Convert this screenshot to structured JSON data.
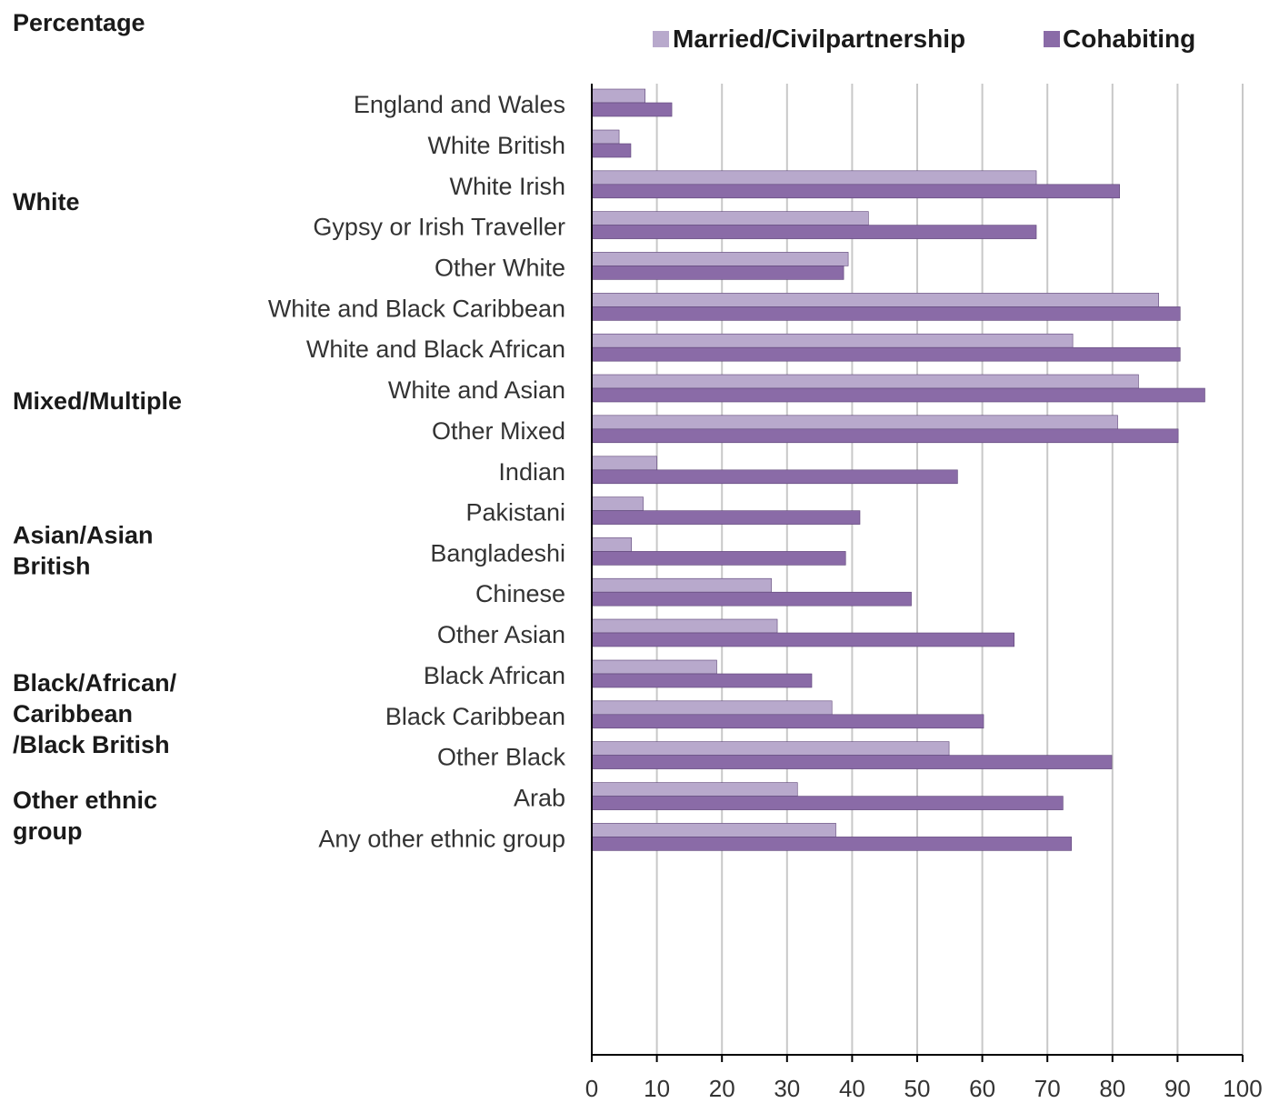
{
  "chart_data": {
    "type": "bar",
    "orientation": "horizontal",
    "ylabel": "Percentage",
    "xlim": [
      0,
      100
    ],
    "xticks": [
      0,
      10,
      20,
      30,
      40,
      50,
      60,
      70,
      80,
      90,
      100
    ],
    "grid": true,
    "legend_position": "top-right",
    "series": [
      {
        "name": "Married/Civilpartnership",
        "color": "#b8a9cc"
      },
      {
        "name": "Cohabiting",
        "color": "#8a6ba7"
      }
    ],
    "groups": [
      {
        "label": "",
        "categories": [
          {
            "label": "England and Wales",
            "values": [
              8.2,
              12.3
            ]
          }
        ]
      },
      {
        "label": "White",
        "categories": [
          {
            "label": "White British",
            "values": [
              4.2,
              6.0
            ]
          },
          {
            "label": "White Irish",
            "values": [
              68.3,
              81.1
            ]
          },
          {
            "label": "Gypsy or Irish Traveller",
            "values": [
              42.5,
              68.3
            ]
          },
          {
            "label": "Other White",
            "values": [
              39.4,
              38.7
            ]
          }
        ]
      },
      {
        "label": "Mixed/Multiple",
        "categories": [
          {
            "label": "White and Black Caribbean",
            "values": [
              87.1,
              90.4
            ]
          },
          {
            "label": "White and Black African",
            "values": [
              73.9,
              90.4
            ]
          },
          {
            "label": "White and Asian",
            "values": [
              84.0,
              94.2
            ]
          },
          {
            "label": "Other Mixed",
            "values": [
              80.8,
              90.1
            ]
          }
        ]
      },
      {
        "label": "Asian/Asian British",
        "categories": [
          {
            "label": "Indian",
            "values": [
              10.0,
              56.2
            ]
          },
          {
            "label": "Pakistani",
            "values": [
              7.9,
              41.2
            ]
          },
          {
            "label": "Bangladeshi",
            "values": [
              6.1,
              39.0
            ]
          },
          {
            "label": "Chinese",
            "values": [
              27.6,
              49.1
            ]
          },
          {
            "label": "Other Asian",
            "values": [
              28.5,
              64.9
            ]
          }
        ]
      },
      {
        "label": "Black/African/ Caribbean /Black British",
        "categories": [
          {
            "label": "Black African",
            "values": [
              19.2,
              33.8
            ]
          },
          {
            "label": "Black Caribbean",
            "values": [
              36.9,
              60.2
            ]
          },
          {
            "label": "Other Black",
            "values": [
              54.9,
              79.9
            ]
          }
        ]
      },
      {
        "label": "Other ethnic group",
        "categories": [
          {
            "label": "Arab",
            "values": [
              31.6,
              72.4
            ]
          },
          {
            "label": "Any other ethnic group",
            "values": [
              37.5,
              73.7
            ]
          }
        ]
      }
    ]
  }
}
